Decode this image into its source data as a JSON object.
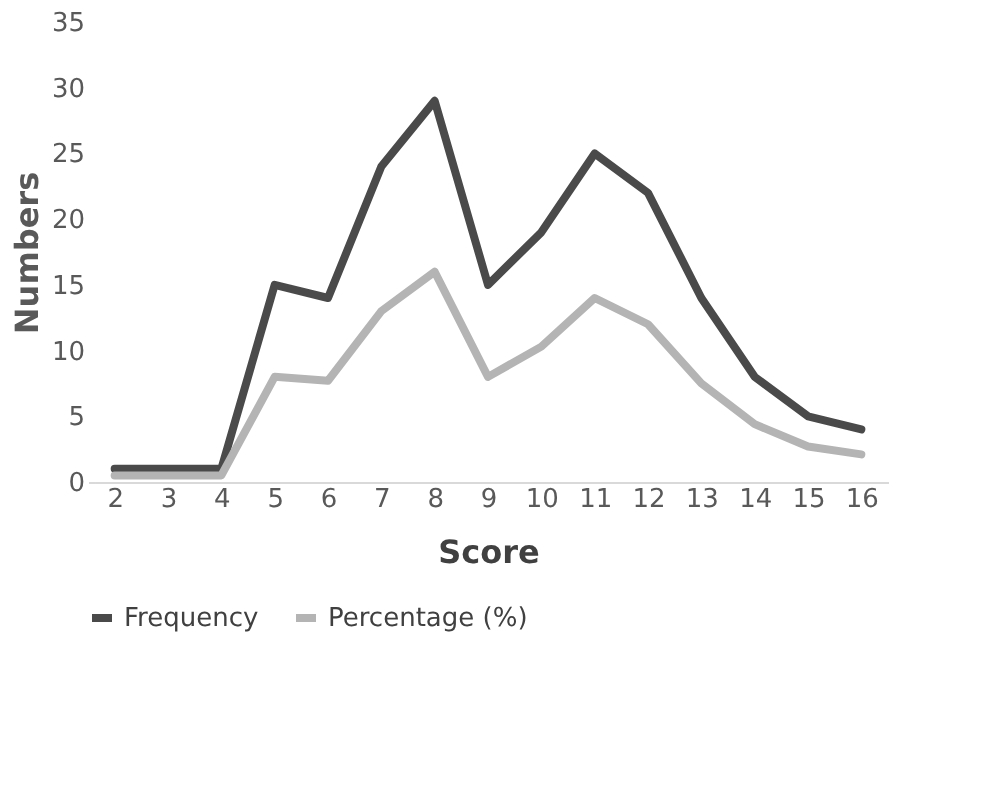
{
  "chart_data": {
    "type": "line",
    "xlabel": "Score",
    "ylabel": "Numbers",
    "categories": [
      "2",
      "3",
      "4",
      "5",
      "6",
      "7",
      "8",
      "9",
      "10",
      "11",
      "12",
      "13",
      "14",
      "15",
      "16"
    ],
    "series": [
      {
        "name": "Frequency",
        "color": "#4a4a4a",
        "values": [
          1,
          1,
          1,
          15,
          14,
          24,
          29,
          15,
          19,
          25,
          22,
          14,
          8,
          5,
          4
        ]
      },
      {
        "name": "Percentage (%)",
        "color": "#b4b4b4",
        "values": [
          0.5,
          0.5,
          0.5,
          8,
          7.7,
          13,
          16,
          8,
          10.3,
          14,
          12,
          7.5,
          4.4,
          2.7,
          2.1
        ]
      }
    ],
    "ylim": [
      0,
      35
    ],
    "yticks": [
      0,
      5,
      10,
      15,
      20,
      25,
      30,
      35
    ],
    "grid": false,
    "legend": "bottom",
    "marker": "none",
    "line_style": "solid"
  }
}
